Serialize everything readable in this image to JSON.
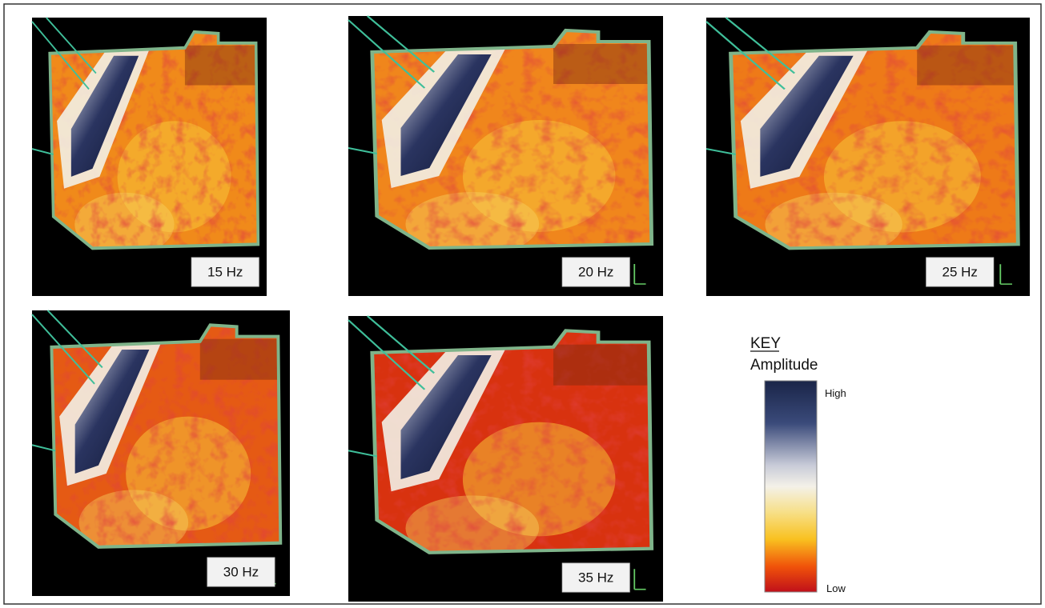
{
  "panels": [
    {
      "label": "15 Hz"
    },
    {
      "label": "20 Hz"
    },
    {
      "label": "25 Hz"
    },
    {
      "label": "30 Hz"
    },
    {
      "label": "35 Hz"
    }
  ],
  "key": {
    "title": "KEY",
    "subtitle": "Amplitude",
    "high": "High",
    "low": "Low"
  }
}
